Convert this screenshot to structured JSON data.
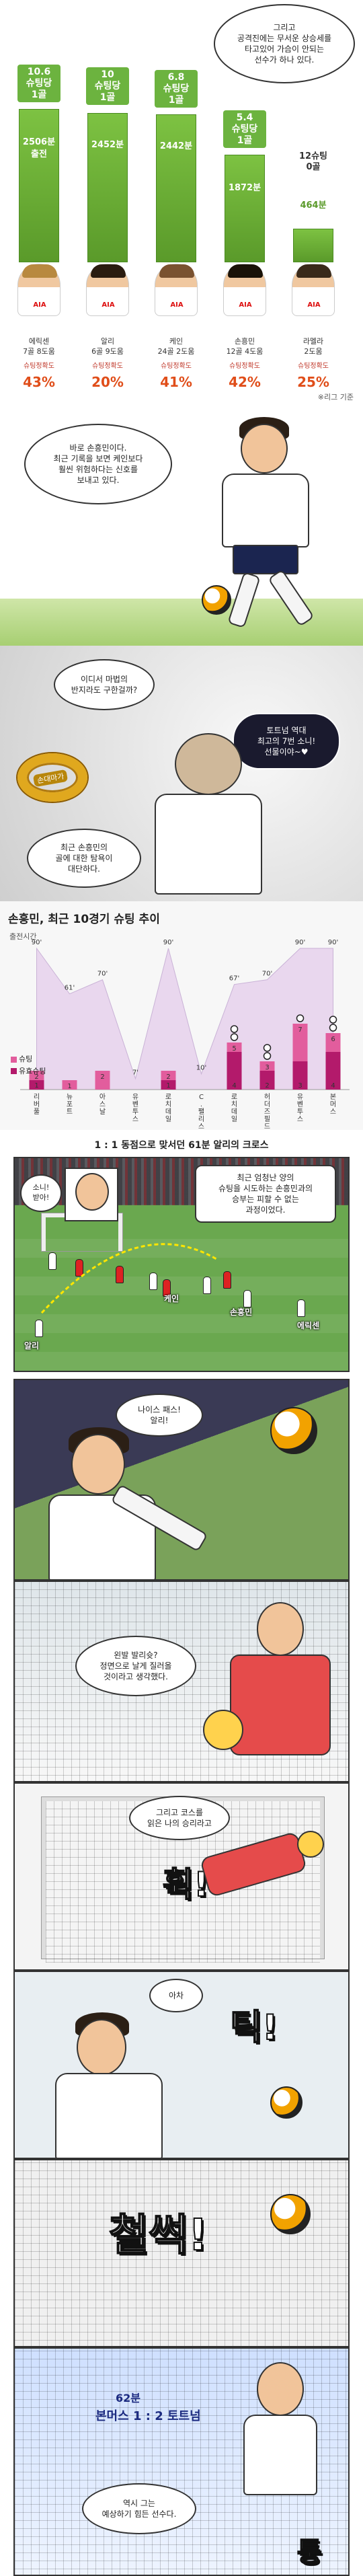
{
  "ranking": {
    "intro_bubble": "그리고\n공격진에는 무서운 상승세를\n타고있어 가슴이 안되는\n선수가 하나 있다.",
    "note": "※리그 기준",
    "players": [
      {
        "shots": "10.6\n슈팅당\n1골",
        "minutes": "2506분",
        "extra": "출전",
        "name": "에릭센\n7골 8도움",
        "acc_label": "슈팅정확도",
        "pct": "43%"
      },
      {
        "shots": "10\n슈팅당\n1골",
        "minutes": "2452분",
        "extra": "",
        "name": "알리\n6골 9도움",
        "acc_label": "슈팅정확도",
        "pct": "20%"
      },
      {
        "shots": "6.8\n슈팅당\n1골",
        "minutes": "2442분",
        "extra": "",
        "name": "케인\n24골 2도움",
        "acc_label": "슈팅정확도",
        "pct": "41%"
      },
      {
        "shots": "5.4\n슈팅당\n1골",
        "minutes": "1872분",
        "extra": "",
        "name": "손흥민\n12골 4도움",
        "acc_label": "슈팅정확도",
        "pct": "42%"
      },
      {
        "shots": "12슈팅\n0골",
        "minutes": "464분",
        "extra": "",
        "name": "라멜라\n2도움",
        "acc_label": "슈팅정확도",
        "pct": "25%"
      }
    ]
  },
  "son_panel": {
    "bubble": "바로 손흥민이다.\n최근 기록을 보면 케인보다\n훨씬 위험하다는 신호를\n보내고 있다."
  },
  "gollum_panel": {
    "bubble_left": "이디서 마법의\n반지라도 구한걸까?",
    "bubble_right": "토트넘 역대\n최고의 7번 소니!\n선물이야~♥",
    "ring_label": "손대마가",
    "caption": "최근 손흥민의\n골에 대한 탐욕이\n대단하다."
  },
  "chart": {
    "title": "손흥민, 최근 10경기 슈팅 추이",
    "ylabel": "출전시간"
  },
  "chart_data": {
    "type": "bar",
    "title": "손흥민, 최근 10경기 슈팅 추이",
    "categories": [
      "리버풀",
      "뉴포트",
      "아스날",
      "유벤투스",
      "로치데일",
      "C.팰리스",
      "로치데일",
      "허더즈필드",
      "유벤투스",
      "본머스"
    ],
    "series": [
      {
        "name": "슈팅",
        "values": [
          2,
          1,
          2,
          0,
          2,
          0,
          5,
          3,
          7,
          6
        ]
      },
      {
        "name": "유효슈팅",
        "values": [
          1,
          0,
          0,
          0,
          1,
          0,
          4,
          2,
          3,
          4
        ]
      }
    ],
    "minutes": [
      90,
      61,
      70,
      7,
      90,
      10,
      67,
      70,
      90,
      90
    ],
    "minutes_labels": [
      "90'",
      "61'",
      "70'",
      "7'",
      "90'",
      "10'",
      "67'",
      "70'",
      "90'",
      "90'"
    ],
    "goals": [
      0,
      0,
      0,
      0,
      0,
      0,
      2,
      2,
      1,
      2
    ],
    "legend": [
      "슈팅",
      "유효슈팅"
    ],
    "ylim": [
      0,
      90
    ],
    "colors": {
      "shots": "#e25d9d",
      "on_target": "#b31a6b",
      "minutes_area": "#e9d7ee"
    }
  },
  "cross_panel": {
    "title": "1 : 1 동점으로 맞서던 61분 알리의 크로스",
    "bubble_left": "소니!\n받아!",
    "caption": "최근 엄청난 양의\n슈팅을 시도하는 손흥민과의\n승부는 피할 수 없는\n과정이었다.",
    "tags": [
      "케인",
      "손흥민",
      "에릭센",
      "알리"
    ]
  },
  "panel6": {
    "bubble": "나이스 패스!\n알리!"
  },
  "panel7": {
    "bubble": "왼발 발리슛?\n정면으로 날게 질러올\n것이라고 생각했다."
  },
  "panel8": {
    "bubble": "그리고 코스를\n읽은 나의 승리라고",
    "sfx": "휙!"
  },
  "panel9": {
    "bubble": "아차",
    "sfx": "틱!"
  },
  "panel10": {
    "sfx": "철썩!"
  },
  "panel11": {
    "time": "62분",
    "score": "본머스 1 : 2 토트넘",
    "caption": "역시 그는\n예상하기 힘든 선수다.",
    "sfx": "퉁"
  }
}
